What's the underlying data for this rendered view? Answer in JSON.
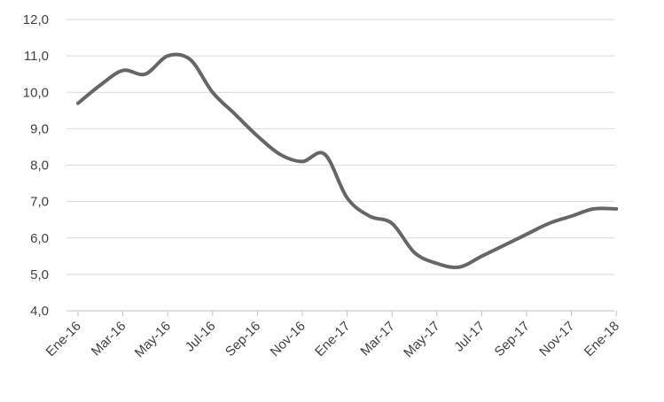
{
  "chart_data": {
    "type": "line",
    "title": "",
    "xlabel": "",
    "ylabel": "",
    "ylim": [
      4.0,
      12.0
    ],
    "yticks": [
      "4,0",
      "5,0",
      "6,0",
      "7,0",
      "8,0",
      "9,0",
      "10,0",
      "11,0",
      "12,0"
    ],
    "xticks": [
      "Ene-16",
      "Mar-16",
      "May-16",
      "Jul-16",
      "Sep-16",
      "Nov-16",
      "Ene-17",
      "Mar-17",
      "May-17",
      "Jul-17",
      "Sep-17",
      "Nov-17",
      "Ene-18"
    ],
    "grid": "horizontal",
    "legend": "none",
    "line_color": "#666666",
    "grid_color": "#d9d9d9",
    "categories": [
      "Ene-16",
      "Feb-16",
      "Mar-16",
      "Apr-16",
      "May-16",
      "Jun-16",
      "Jul-16",
      "Aug-16",
      "Sep-16",
      "Oct-16",
      "Nov-16",
      "Dec-16",
      "Ene-17",
      "Feb-17",
      "Mar-17",
      "Apr-17",
      "May-17",
      "Jun-17",
      "Jul-17",
      "Aug-17",
      "Sep-17",
      "Oct-17",
      "Nov-17",
      "Dec-17",
      "Ene-18"
    ],
    "values": [
      9.7,
      10.2,
      10.6,
      10.5,
      11.0,
      10.9,
      10.0,
      9.4,
      8.8,
      8.3,
      8.1,
      8.3,
      7.1,
      6.6,
      6.4,
      5.6,
      5.3,
      5.2,
      5.5,
      5.8,
      6.1,
      6.4,
      6.6,
      6.8,
      6.8
    ]
  }
}
